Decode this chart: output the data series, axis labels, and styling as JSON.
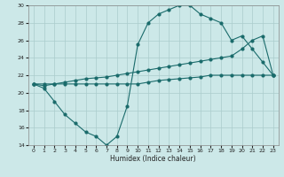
{
  "xlabel": "Humidex (Indice chaleur)",
  "xlim": [
    -0.5,
    23.5
  ],
  "ylim": [
    14,
    30
  ],
  "yticks": [
    14,
    16,
    18,
    20,
    22,
    24,
    26,
    28,
    30
  ],
  "xticks": [
    0,
    1,
    2,
    3,
    4,
    5,
    6,
    7,
    8,
    9,
    10,
    11,
    12,
    13,
    14,
    15,
    16,
    17,
    18,
    19,
    20,
    21,
    22,
    23
  ],
  "bg_color": "#cce8e8",
  "grid_color": "#aacccc",
  "line_color": "#1a6b6b",
  "line1_x": [
    0,
    1,
    2,
    3,
    4,
    5,
    6,
    7,
    8,
    9,
    10,
    11,
    12,
    13,
    14,
    15,
    16,
    17,
    18,
    19,
    20,
    21,
    22,
    23
  ],
  "line1_y": [
    21.0,
    20.5,
    19.0,
    17.5,
    16.5,
    15.5,
    15.0,
    14.0,
    15.0,
    18.5,
    25.5,
    28.0,
    29.0,
    29.5,
    30.0,
    30.0,
    29.0,
    28.5,
    28.0,
    26.0,
    26.5,
    25.0,
    23.5,
    22.0
  ],
  "line2_x": [
    0,
    1,
    2,
    3,
    4,
    5,
    6,
    7,
    8,
    9,
    10,
    11,
    12,
    13,
    14,
    15,
    16,
    17,
    18,
    19,
    20,
    21,
    22,
    23
  ],
  "line2_y": [
    21.0,
    20.8,
    21.0,
    21.2,
    21.4,
    21.6,
    21.7,
    21.8,
    22.0,
    22.2,
    22.4,
    22.6,
    22.8,
    23.0,
    23.2,
    23.4,
    23.6,
    23.8,
    24.0,
    24.2,
    25.0,
    26.0,
    26.5,
    22.0
  ],
  "line3_x": [
    0,
    1,
    2,
    3,
    4,
    5,
    6,
    7,
    8,
    9,
    10,
    11,
    12,
    13,
    14,
    15,
    16,
    17,
    18,
    19,
    20,
    21,
    22,
    23
  ],
  "line3_y": [
    21.0,
    21.0,
    21.0,
    21.0,
    21.0,
    21.0,
    21.0,
    21.0,
    21.0,
    21.0,
    21.0,
    21.2,
    21.4,
    21.5,
    21.6,
    21.7,
    21.8,
    22.0,
    22.0,
    22.0,
    22.0,
    22.0,
    22.0,
    22.0
  ]
}
